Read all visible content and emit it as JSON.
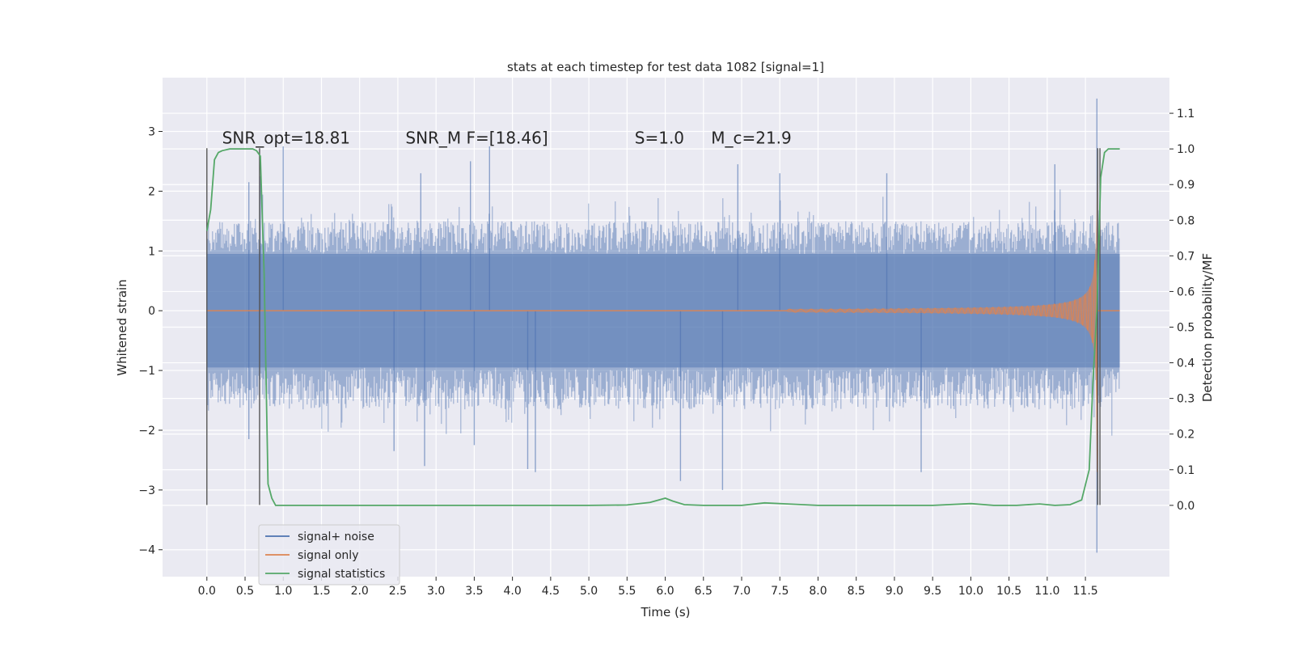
{
  "chart_data": {
    "type": "line",
    "title": "stats at each timestep for test data 1082 [signal=1]",
    "xlabel": "Time (s)",
    "ylabel": "Whitened strain",
    "y2label": "Detection probability/MF",
    "xlim": [
      -0.58,
      12.6
    ],
    "ylim": [
      -4.45,
      3.9
    ],
    "y2lim": [
      -0.2,
      1.2
    ],
    "x_ticks": [
      0.0,
      0.5,
      1.0,
      1.5,
      2.0,
      2.5,
      3.0,
      3.5,
      4.0,
      4.5,
      5.0,
      5.5,
      6.0,
      6.5,
      7.0,
      7.5,
      8.0,
      8.5,
      9.0,
      9.5,
      10.0,
      10.5,
      11.0,
      11.5
    ],
    "x_tick_labels": [
      "0.0",
      "0.5",
      "1.0",
      "1.5",
      "2.0",
      "2.5",
      "3.0",
      "3.5",
      "4.0",
      "4.5",
      "5.0",
      "5.5",
      "6.0",
      "6.5",
      "7.0",
      "7.5",
      "8.0",
      "8.5",
      "9.0",
      "9.5",
      "10.0",
      "10.5",
      "11.0",
      "11.5"
    ],
    "y_ticks": [
      -4,
      -3,
      -2,
      -1,
      0,
      1,
      2,
      3
    ],
    "y_tick_labels": [
      "−4",
      "−3",
      "−2",
      "−1",
      "0",
      "1",
      "2",
      "3"
    ],
    "y2_ticks": [
      0.0,
      0.1,
      0.2,
      0.3,
      0.4,
      0.5,
      0.6,
      0.7,
      0.8,
      0.9,
      1.0,
      1.1
    ],
    "y2_tick_labels": [
      "0.0",
      "0.1",
      "0.2",
      "0.3",
      "0.4",
      "0.5",
      "0.6",
      "0.7",
      "0.8",
      "0.9",
      "1.0",
      "1.1"
    ],
    "grid": true,
    "legend_position": "lower-left",
    "annotations": [
      {
        "x": 0.2,
        "y": 2.8,
        "text": "SNR_opt=18.81"
      },
      {
        "x": 2.6,
        "y": 2.8,
        "text": "SNR_M F=[18.46]"
      },
      {
        "x": 5.6,
        "y": 2.8,
        "text": "S=1.0"
      },
      {
        "x": 6.6,
        "y": 2.8,
        "text": "M_c=21.9"
      }
    ],
    "vertical_markers": [
      {
        "x": 0.0,
        "y_from": -3.25,
        "y_to": 2.72
      },
      {
        "x": 0.69,
        "y_from": -3.25,
        "y_to": 2.72
      },
      {
        "x": 11.66,
        "y_from": -3.25,
        "y_to": 2.72
      },
      {
        "x": 11.69,
        "y_from": -3.25,
        "y_to": 2.72
      }
    ],
    "series": [
      {
        "name": "signal+ noise",
        "color": "#4c72b0",
        "style": "noise-envelope",
        "x_range": [
          0.0,
          11.95
        ],
        "base_lower": -1.65,
        "base_upper": 1.5,
        "spike_peaks": [
          {
            "x": 0.55,
            "y": 2.15
          },
          {
            "x": 0.7,
            "y": 2.25
          },
          {
            "x": 1.0,
            "y": 2.75
          },
          {
            "x": 2.8,
            "y": 2.3
          },
          {
            "x": 3.45,
            "y": 2.5
          },
          {
            "x": 3.7,
            "y": 2.75
          },
          {
            "x": 6.95,
            "y": 2.45
          },
          {
            "x": 7.5,
            "y": 2.3
          },
          {
            "x": 8.9,
            "y": 2.3
          },
          {
            "x": 11.1,
            "y": 2.45
          },
          {
            "x": 11.65,
            "y": 3.55
          },
          {
            "x": 0.55,
            "y": -2.15
          },
          {
            "x": 2.45,
            "y": -2.35
          },
          {
            "x": 2.85,
            "y": -2.6
          },
          {
            "x": 3.5,
            "y": -2.25
          },
          {
            "x": 4.2,
            "y": -2.65
          },
          {
            "x": 4.3,
            "y": -2.7
          },
          {
            "x": 6.2,
            "y": -2.85
          },
          {
            "x": 6.75,
            "y": -3.0
          },
          {
            "x": 9.35,
            "y": -2.7
          },
          {
            "x": 11.65,
            "y": -4.05
          }
        ]
      },
      {
        "name": "signal only",
        "color": "#dd8452",
        "style": "chirp",
        "x_range": [
          0.0,
          11.95
        ],
        "chirp_onset": 7.6,
        "merger_time": 11.66,
        "peak_amplitude": 2.7
      },
      {
        "name": "signal statistics",
        "color": "#55a868",
        "axis": "y2",
        "x": [
          0.0,
          0.05,
          0.1,
          0.15,
          0.2,
          0.3,
          0.4,
          0.5,
          0.6,
          0.65,
          0.7,
          0.75,
          0.8,
          0.85,
          0.9,
          0.95,
          1.5,
          3.0,
          5.0,
          5.5,
          5.8,
          6.0,
          6.1,
          6.25,
          6.5,
          7.0,
          7.3,
          7.6,
          8.0,
          9.0,
          9.5,
          10.0,
          10.3,
          10.6,
          10.9,
          11.1,
          11.3,
          11.45,
          11.55,
          11.6,
          11.65,
          11.7,
          11.75,
          11.8,
          11.85,
          11.9,
          11.95
        ],
        "y": [
          0.77,
          0.83,
          0.97,
          0.99,
          0.995,
          1.0,
          1.0,
          1.0,
          1.0,
          0.995,
          0.98,
          0.65,
          0.06,
          0.02,
          0.0,
          0.0,
          0.0,
          0.0,
          0.0,
          0.001,
          0.008,
          0.02,
          0.012,
          0.002,
          0.0,
          0.0,
          0.007,
          0.004,
          0.0,
          0.0,
          0.0,
          0.005,
          0.0,
          0.0,
          0.004,
          0.0,
          0.002,
          0.015,
          0.1,
          0.35,
          0.55,
          0.92,
          0.99,
          1.0,
          1.0,
          1.0,
          1.0
        ]
      }
    ],
    "legend": [
      {
        "label": "signal+ noise",
        "color": "#4c72b0"
      },
      {
        "label": "signal only",
        "color": "#dd8452"
      },
      {
        "label": "signal statistics",
        "color": "#55a868"
      }
    ]
  }
}
